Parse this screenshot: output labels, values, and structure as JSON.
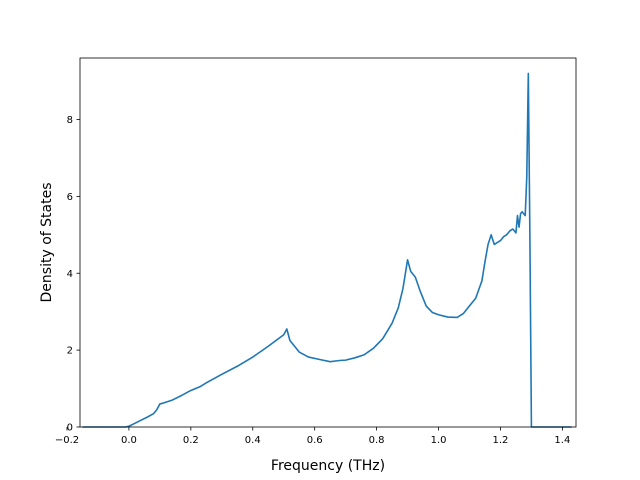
{
  "chart_data": {
    "type": "line",
    "title": "",
    "xlabel": "Frequency (THz)",
    "ylabel": "Density of States",
    "xlim": [
      -0.158,
      1.444
    ],
    "ylim": [
      0,
      9.6
    ],
    "grid": false,
    "legend": "none",
    "series": [
      {
        "color": "#1f77b4",
        "x": [
          -0.15,
          -0.05,
          -0.01,
          0.0,
          0.02,
          0.04,
          0.06,
          0.08,
          0.09,
          0.1,
          0.11,
          0.14,
          0.17,
          0.2,
          0.23,
          0.25,
          0.3,
          0.35,
          0.4,
          0.45,
          0.5,
          0.51,
          0.52,
          0.55,
          0.58,
          0.62,
          0.65,
          0.68,
          0.7,
          0.73,
          0.76,
          0.79,
          0.82,
          0.85,
          0.87,
          0.885,
          0.9,
          0.91,
          0.925,
          0.94,
          0.96,
          0.98,
          1.0,
          1.02,
          1.03,
          1.06,
          1.08,
          1.1,
          1.12,
          1.14,
          1.15,
          1.16,
          1.17,
          1.18,
          1.2,
          1.21,
          1.22,
          1.23,
          1.24,
          1.25,
          1.255,
          1.26,
          1.265,
          1.27,
          1.28,
          1.285,
          1.29,
          1.295,
          1.3,
          1.31,
          1.35,
          1.43
        ],
        "y": [
          0,
          0,
          0,
          0.02,
          0.1,
          0.18,
          0.26,
          0.35,
          0.45,
          0.6,
          0.62,
          0.7,
          0.82,
          0.95,
          1.05,
          1.15,
          1.37,
          1.58,
          1.82,
          2.1,
          2.4,
          2.55,
          2.25,
          1.95,
          1.82,
          1.75,
          1.7,
          1.73,
          1.74,
          1.8,
          1.88,
          2.05,
          2.3,
          2.7,
          3.1,
          3.6,
          4.35,
          4.05,
          3.9,
          3.55,
          3.15,
          2.98,
          2.92,
          2.88,
          2.86,
          2.85,
          2.95,
          3.15,
          3.35,
          3.8,
          4.3,
          4.75,
          5.0,
          4.75,
          4.85,
          4.95,
          5.0,
          5.1,
          5.15,
          5.05,
          5.5,
          5.2,
          5.55,
          5.6,
          5.5,
          6.5,
          9.2,
          5.0,
          0,
          0,
          0,
          0
        ]
      }
    ],
    "xticks": [
      -0.2,
      0.0,
      0.2,
      0.4,
      0.6,
      0.8,
      1.0,
      1.2,
      1.4
    ],
    "xtick_labels": [
      "−0.2",
      "0.0",
      "0.2",
      "0.4",
      "0.6",
      "0.8",
      "1.0",
      "1.2",
      "1.4"
    ],
    "yticks": [
      0,
      2,
      4,
      6,
      8
    ],
    "ytick_labels": [
      "0",
      "2",
      "4",
      "6",
      "8"
    ]
  }
}
